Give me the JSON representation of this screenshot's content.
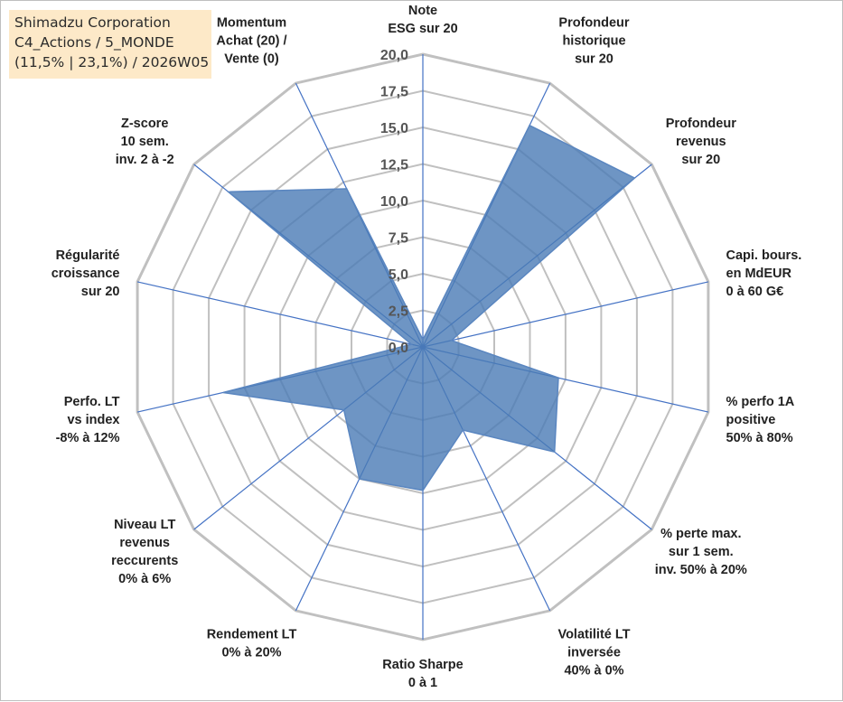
{
  "header": {
    "company": "Shimadzu Corporation",
    "portfolio": "C4_Actions / 5_MONDE",
    "period": "(11,5% | 23,1%) / 2026W05"
  },
  "colors": {
    "fill": "#4a7ab5",
    "stroke": "#5a86c0",
    "grid": "#c0c0c0",
    "spoke": "#4472c4",
    "title_bg": "#fde9c8"
  },
  "chart_data": {
    "type": "radar",
    "title": "Shimadzu Corporation",
    "rlim": [
      0,
      20
    ],
    "rticks": [
      "0,0",
      "2,5",
      "5,0",
      "7,5",
      "10,0",
      "12,5",
      "15,0",
      "17,5",
      "20,0"
    ],
    "axes": [
      {
        "label": [
          "Note",
          "ESG sur 20"
        ],
        "value": 0.5
      },
      {
        "label": [
          "Profondeur",
          "historique",
          "sur 20"
        ],
        "value": 16.8
      },
      {
        "label": [
          "Profondeur",
          "revenus",
          "sur 20"
        ],
        "value": 18.5
      },
      {
        "label": [
          "Capi. bours.",
          "en MdEUR",
          "0 à 60 G€"
        ],
        "value": 2.0
      },
      {
        "label": [
          "% perfo 1A",
          "positive",
          "50% à 80%"
        ],
        "value": 9.5
      },
      {
        "label": [
          "% perte max.",
          "sur 1 sem.",
          "inv. 50% à 20%"
        ],
        "value": 11.5
      },
      {
        "label": [
          "Volatilité LT",
          "inversée",
          "40% à 0%"
        ],
        "value": 6.3
      },
      {
        "label": [
          "Ratio Sharpe",
          "0 à 1"
        ],
        "value": 9.8
      },
      {
        "label": [
          "Rendement LT",
          "0% à 20%"
        ],
        "value": 10.0
      },
      {
        "label": [
          "Niveau LT",
          "revenus",
          "reccurents",
          "0% à 6%"
        ],
        "value": 6.9
      },
      {
        "label": [
          "Perfo. LT",
          "vs index",
          "-8% à 12%"
        ],
        "value": 14.0
      },
      {
        "label": [
          "Régularité",
          "croissance",
          "sur 20"
        ],
        "value": 0.8
      },
      {
        "label": [
          "Z-score",
          "10 sem.",
          "inv. 2 à -2"
        ],
        "value": 17.0
      },
      {
        "label": [
          "Momentum",
          "Achat (20) /",
          "Vente (0)"
        ],
        "value": 12.0
      }
    ]
  }
}
